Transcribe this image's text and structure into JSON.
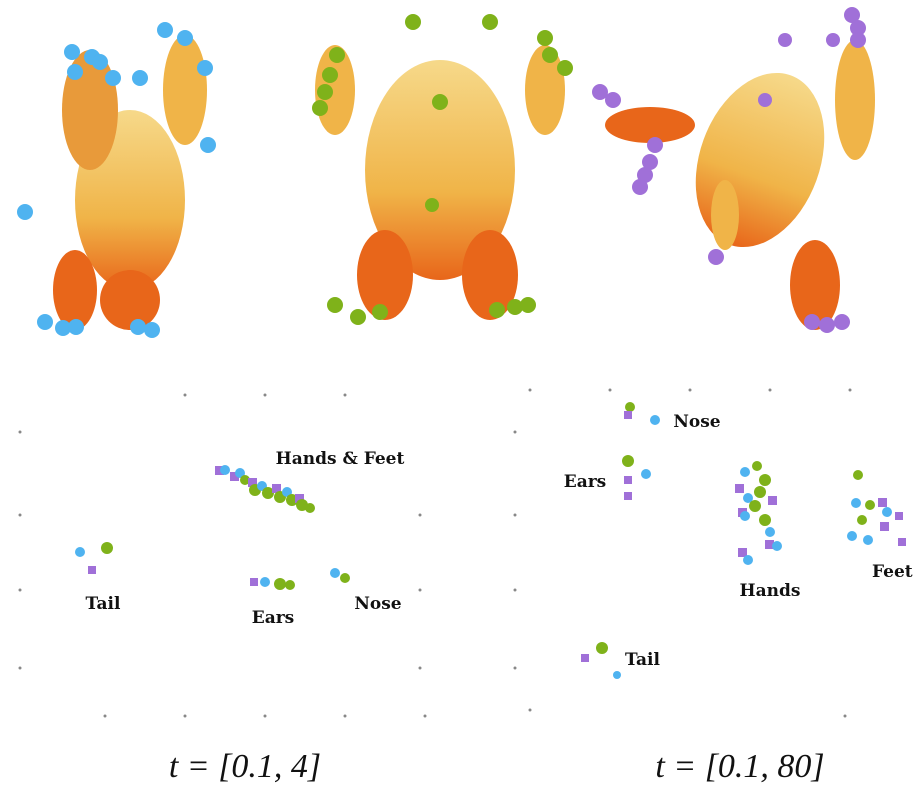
{
  "figure": {
    "panels": [
      {
        "labels": [
          "Hands & Feet",
          "Tail",
          "Ears",
          "Nose"
        ],
        "caption": "t = [0.1, 4]"
      },
      {
        "labels": [
          "Nose",
          "Ears",
          "Hands",
          "Feet",
          "Tail"
        ],
        "caption": "t = [0.1, 80]"
      }
    ]
  }
}
